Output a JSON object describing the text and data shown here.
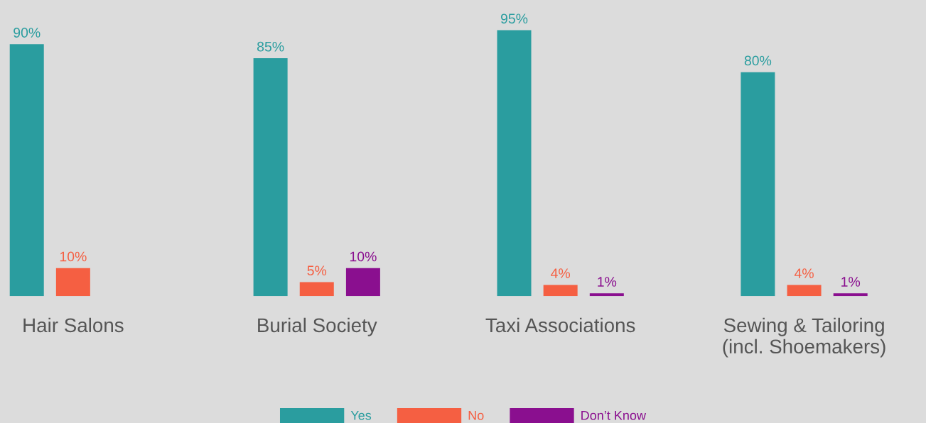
{
  "chart_data": {
    "type": "bar",
    "categories": [
      "Hair Salons",
      "Burial Society",
      "Taxi Associations",
      "Sewing & Tailoring\n(incl. Shoemakers)"
    ],
    "series": [
      {
        "name": "Yes",
        "color": "#2a9d9f",
        "values": [
          90,
          85,
          95,
          80
        ],
        "value_labels": [
          "90%",
          "85%",
          "95%",
          "80%"
        ]
      },
      {
        "name": "No",
        "color": "#f55f42",
        "values": [
          10,
          5,
          4,
          4
        ],
        "value_labels": [
          "10%",
          "5%",
          "4%",
          "4%"
        ]
      },
      {
        "name": "Don’t Know",
        "color": "#8a0f8f",
        "values": [
          null,
          10,
          1,
          1
        ],
        "value_labels": [
          null,
          "10%",
          "1%",
          "1%"
        ]
      }
    ],
    "grid": false,
    "legend": "bottom"
  }
}
